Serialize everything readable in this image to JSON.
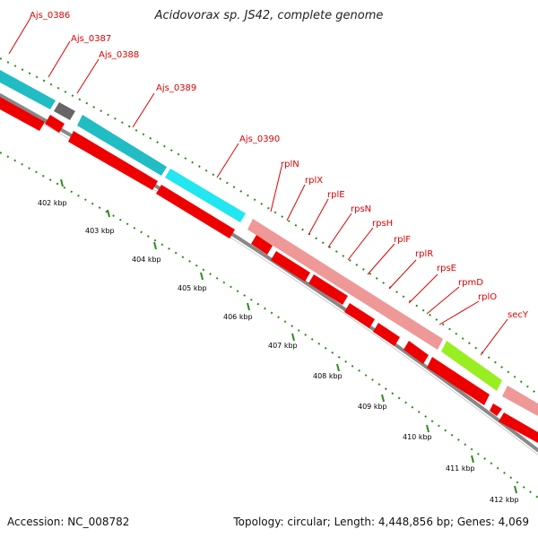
{
  "title": "Acidovorax sp. JS42, complete genome",
  "footer": {
    "accession": "Accession: NC_008782",
    "topology": "Topology: circular; Length: 4,448,856 bp; Genes: 4,069"
  },
  "colors": {
    "gene_label": "#e00000",
    "tick": "#2e8b1e",
    "backbone": "#888888",
    "cds_red": "#ee0000",
    "teal": "#22bcc4",
    "cyan": "#22e6f0",
    "salmon": "#ef9898",
    "green": "#99ee22",
    "gray": "#666666"
  },
  "genes": [
    "Ajs_0386",
    "Ajs_0387",
    "Ajs_0388",
    "Ajs_0389",
    "Ajs_0390",
    "rplN",
    "rplX",
    "rplE",
    "rpsN",
    "rpsH",
    "rplF",
    "rplR",
    "rpsE",
    "rpmD",
    "rplO",
    "secY"
  ],
  "ticks": [
    "402 kbp",
    "403 kbp",
    "404 kbp",
    "405 kbp",
    "406 kbp",
    "407 kbp",
    "408 kbp",
    "409 kbp",
    "410 kbp",
    "411 kbp",
    "412 kbp"
  ]
}
